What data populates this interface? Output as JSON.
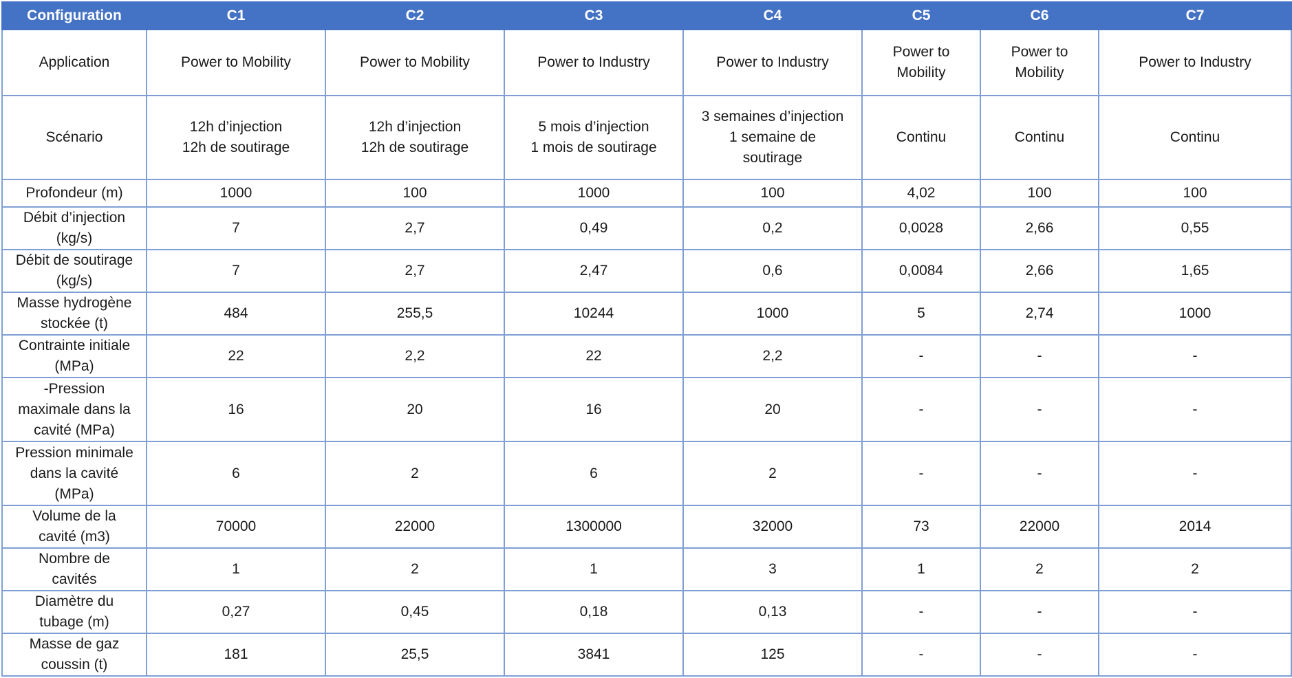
{
  "table": {
    "headers": [
      "Configuration",
      "C1",
      "C2",
      "C3",
      "C4",
      "C5",
      "C6",
      "C7"
    ],
    "rows": [
      {
        "label": "Application",
        "cells": [
          "Power to Mobility",
          "Power to Mobility",
          "Power to Industry",
          "Power to Industry",
          "Power to\nMobility",
          "Power to\nMobility",
          "Power to Industry"
        ]
      },
      {
        "label": "Scénario",
        "cells": [
          "12h d’injection\n12h de soutirage",
          "12h d’injection\n12h de soutirage",
          "5 mois d’injection\n1 mois de soutirage",
          "3 semaines d’injection\n1 semaine de\nsoutirage",
          "Continu",
          "Continu",
          "Continu"
        ]
      },
      {
        "label": "Profondeur (m)",
        "cells": [
          "1000",
          "100",
          "1000",
          "100",
          "4,02",
          "100",
          "100"
        ]
      },
      {
        "label": "Débit d’injection\n(kg/s)",
        "cells": [
          "7",
          "2,7",
          "0,49",
          "0,2",
          "0,0028",
          "2,66",
          "0,55"
        ]
      },
      {
        "label": "Débit de soutirage\n(kg/s)",
        "cells": [
          "7",
          "2,7",
          "2,47",
          "0,6",
          "0,0084",
          "2,66",
          "1,65"
        ]
      },
      {
        "label": "Masse hydrogène\nstockée (t)",
        "cells": [
          "484",
          "255,5",
          "10244",
          "1000",
          "5",
          "2,74",
          "1000"
        ]
      },
      {
        "label": "Contrainte initiale\n(MPa)",
        "cells": [
          "22",
          "2,2",
          "22",
          "2,2",
          "-",
          "-",
          "-"
        ]
      },
      {
        "label": "-Pression\nmaximale dans la\ncavité (MPa)",
        "cells": [
          "16",
          "20",
          "16",
          "20",
          "-",
          "-",
          "-"
        ]
      },
      {
        "label": "Pression minimale\ndans la cavité\n(MPa)",
        "cells": [
          "6",
          "2",
          "6",
          "2",
          "-",
          "-",
          "-"
        ]
      },
      {
        "label": "Volume de la\ncavité (m3)",
        "cells": [
          "70000",
          "22000",
          "1300000",
          "32000",
          "73",
          "22000",
          "2014"
        ]
      },
      {
        "label": "Nombre de\ncavités",
        "cells": [
          "1",
          "2",
          "1",
          "3",
          "1",
          "2",
          "2"
        ]
      },
      {
        "label": "Diamètre du\ntubage (m)",
        "cells": [
          "0,27",
          "0,45",
          "0,18",
          "0,13",
          "-",
          "-",
          "-"
        ]
      },
      {
        "label": "Masse de gaz\ncoussin (t)",
        "cells": [
          "181",
          "25,5",
          "3841",
          "125",
          "-",
          "-",
          "-"
        ]
      }
    ]
  }
}
